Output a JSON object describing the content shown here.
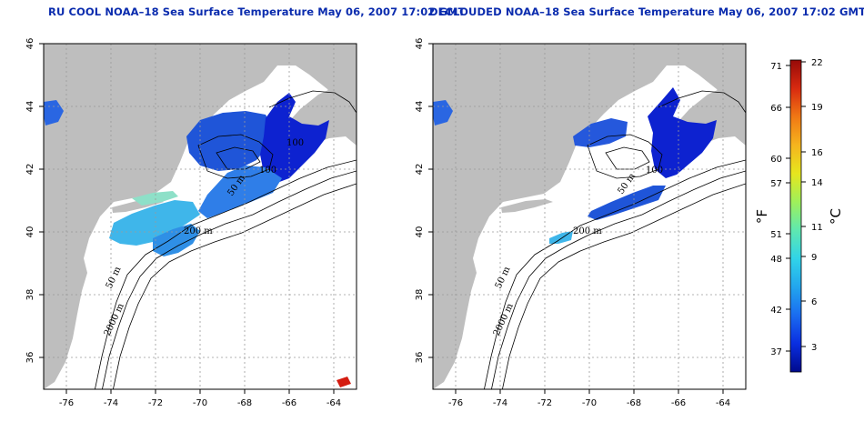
{
  "panels": [
    {
      "id": "left",
      "title": "RU COOL NOAA–18 Sea Surface Temperature May 06, 2007 17:02 GMT"
    },
    {
      "id": "right",
      "title": "DECLOUDED NOAA–18 Sea Surface Temperature May 06, 2007 17:02 GMT"
    }
  ],
  "map": {
    "lon_range": [
      -77,
      -63
    ],
    "lat_range": [
      35,
      46
    ],
    "x_ticks": [
      "-76",
      "-74",
      "-72",
      "-70",
      "-68",
      "-66",
      "-64"
    ],
    "y_ticks": [
      "36",
      "38",
      "40",
      "42",
      "44",
      "46"
    ],
    "contour_labels_left": [
      "100",
      "100",
      "50 m",
      "200 m",
      "50 m",
      "2000 m"
    ],
    "contour_labels_right": [
      "100",
      "50 m",
      "200 m",
      "50 m",
      "2000 m"
    ],
    "land_color": "#bebebe",
    "nodata_color": "#ffffff"
  },
  "colorbar": {
    "fahrenheit_ticks": [
      "71",
      "66",
      "60",
      "57",
      "51",
      "48",
      "42",
      "37"
    ],
    "celsius_ticks": [
      "22",
      "19",
      "16",
      "14",
      "11",
      "9",
      "6",
      "3"
    ],
    "unit_f": "°F",
    "unit_c": "°C",
    "colors": [
      "#000a8c",
      "#0a2ee0",
      "#1a6cf0",
      "#22a6ee",
      "#31d4e8",
      "#5fe8b0",
      "#9ff05a",
      "#e6e61e",
      "#f5b41e",
      "#f07814",
      "#d82a10",
      "#960a08"
    ]
  }
}
